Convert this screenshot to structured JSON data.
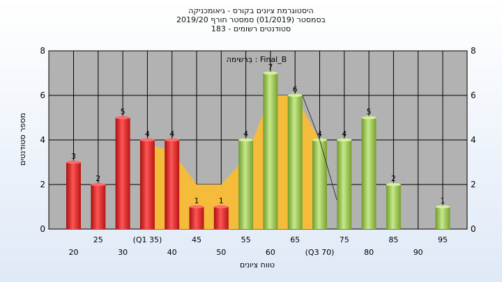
{
  "chart_data": {
    "type": "bar",
    "title": "היסטוגרמת ציונים בקורס - גיאומכניקה",
    "subtitle": "בסמסטר  (01/2019)  סמסטר חורף 2019/20",
    "subtitle2": "183 - סטודנטים רשומים",
    "legend_text": "בְּרשימה : Final_B",
    "xlabel": "טווח ציונים",
    "ylabel": "מספר סטודנטים",
    "ylim": [
      0,
      8
    ],
    "yticks": [
      "0",
      "2",
      "4",
      "6",
      "8"
    ],
    "grid": true,
    "categories": [
      "20",
      "25",
      "30",
      "(Q1 35)",
      "40",
      "45",
      "50",
      "55",
      "60",
      "65",
      "(Q3 70)",
      "75",
      "80",
      "85",
      "90",
      "95"
    ],
    "values": [
      3,
      2,
      5,
      4,
      4,
      1,
      1,
      4,
      7,
      6,
      4,
      4,
      5,
      2,
      0,
      1
    ],
    "bar_groups": [
      "red",
      "red",
      "red",
      "red",
      "red",
      "red",
      "red",
      "green",
      "green",
      "green",
      "green",
      "green",
      "green",
      "green",
      "green",
      "green"
    ],
    "area": {
      "x_index": [
        3,
        4,
        5,
        6,
        7,
        8,
        9,
        10
      ],
      "values": [
        3.8,
        3.5,
        2,
        2,
        3.2,
        6,
        6,
        4
      ],
      "color": "#f5bc3b"
    },
    "line": {
      "x_index": [
        9.3,
        10,
        10.7
      ],
      "values": [
        6,
        4,
        1.3
      ]
    },
    "colors": {
      "red": "#dd1d1d",
      "green": "#8cbf3a",
      "plot_bg": "#b2b2b2"
    }
  }
}
